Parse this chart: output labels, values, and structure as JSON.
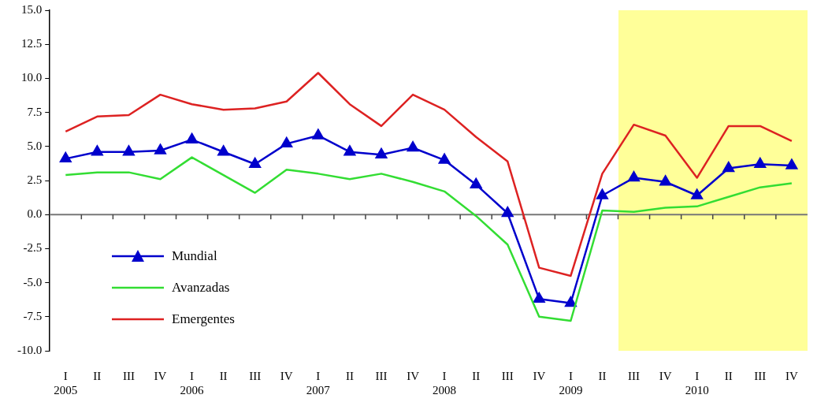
{
  "chart_data": {
    "type": "line",
    "categories": [
      "I\n2005",
      "II",
      "III",
      "IV",
      "I\n2006",
      "II",
      "III",
      "IV",
      "I\n2007",
      "II",
      "III",
      "IV",
      "I\n2008",
      "II",
      "III",
      "IV",
      "I\n2009",
      "II",
      "III",
      "IV",
      "I\n2010",
      "II",
      "III",
      "IV"
    ],
    "series": [
      {
        "name": "Mundial",
        "color": "#0000cc",
        "marker": "triangle",
        "values": [
          4.1,
          4.6,
          4.6,
          4.7,
          5.5,
          4.6,
          3.7,
          5.2,
          5.8,
          4.6,
          4.4,
          4.9,
          4.0,
          2.2,
          0.1,
          -6.2,
          -6.5,
          1.4,
          2.7,
          2.4,
          1.4,
          3.4,
          3.7,
          3.6
        ]
      },
      {
        "name": "Avanzadas",
        "color": "#33dd33",
        "marker": "none",
        "values": [
          2.9,
          3.1,
          3.1,
          2.6,
          4.2,
          2.9,
          1.6,
          3.3,
          3.0,
          2.6,
          3.0,
          2.4,
          1.7,
          -0.1,
          -2.2,
          -7.5,
          -7.8,
          0.3,
          0.2,
          0.5,
          0.6,
          1.3,
          2.0,
          2.3
        ]
      },
      {
        "name": "Emergentes",
        "color": "#dd2222",
        "marker": "none",
        "values": [
          6.1,
          7.2,
          7.3,
          8.8,
          8.1,
          7.7,
          7.8,
          8.3,
          10.4,
          8.1,
          6.5,
          8.8,
          7.7,
          5.7,
          3.9,
          -3.9,
          -4.5,
          3.0,
          6.6,
          5.8,
          2.7,
          6.5,
          6.5,
          5.4
        ]
      }
    ],
    "ylim": [
      -10,
      15
    ],
    "yticks": [
      {
        "value": -10,
        "label": "-10.0"
      },
      {
        "value": -7.5,
        "label": "-7.5"
      },
      {
        "value": -5,
        "label": "-5.0"
      },
      {
        "value": -2.5,
        "label": "-2.5"
      },
      {
        "value": 0,
        "label": "0.0"
      },
      {
        "value": 2.5,
        "label": "2.5"
      },
      {
        "value": 5,
        "label": "5.0"
      },
      {
        "value": 7.5,
        "label": "7.5"
      },
      {
        "value": 10,
        "label": "10.0"
      },
      {
        "value": 12.5,
        "label": "12.5"
      },
      {
        "value": 15,
        "label": "15.0"
      }
    ],
    "ref_lines": [
      {
        "axis": "y",
        "value": 0,
        "color": "#777777"
      }
    ],
    "grid": false,
    "legend": "bottom left",
    "line_style": "solid"
  }
}
